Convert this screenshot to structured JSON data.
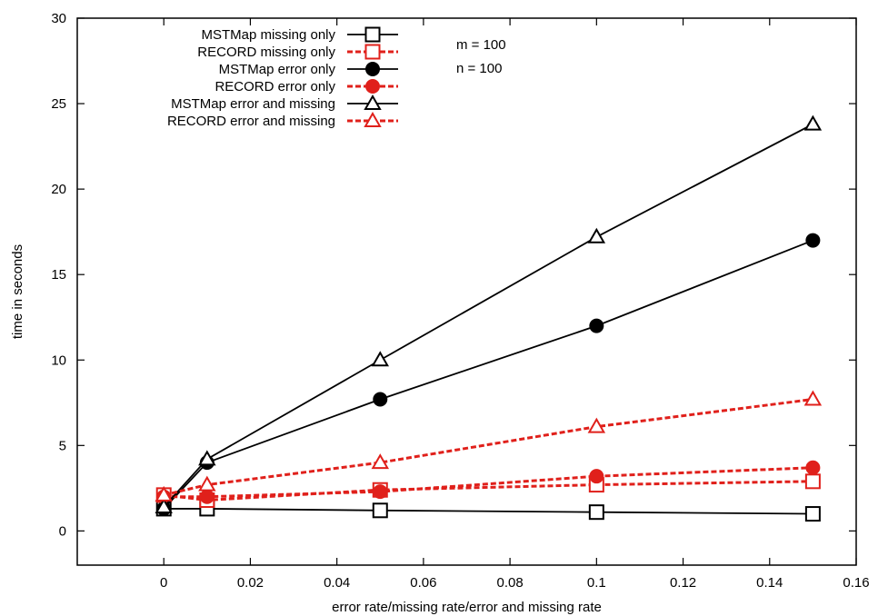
{
  "chart_data": {
    "type": "line",
    "title": "",
    "xlabel": "error rate/missing rate/error and missing rate",
    "ylabel": "time in seconds",
    "xlim": [
      -0.02,
      0.16
    ],
    "ylim": [
      -2,
      30
    ],
    "xticks": [
      0,
      0.02,
      0.04,
      0.06,
      0.08,
      0.1,
      0.12,
      0.14,
      0.16
    ],
    "xtick_labels": [
      "0",
      "0.02",
      "0.04",
      "0.06",
      "0.08",
      "0.1",
      "0.12",
      "0.14",
      "0.16"
    ],
    "yticks": [
      0,
      5,
      10,
      15,
      20,
      25,
      30
    ],
    "ytick_labels": [
      "0",
      "5",
      "10",
      "15",
      "20",
      "25",
      "30"
    ],
    "grid": false,
    "legend_position": "top-left",
    "annotations": [
      "m = 100",
      "n = 100"
    ],
    "series": [
      {
        "name": "MSTMap missing only",
        "color": "#000000",
        "dash": "solid",
        "marker": "open-square",
        "x": [
          0,
          0.01,
          0.05,
          0.1,
          0.15
        ],
        "y": [
          1.3,
          1.3,
          1.2,
          1.1,
          1.0
        ]
      },
      {
        "name": "RECORD missing only",
        "color": "#e0201b",
        "dash": "dashed",
        "marker": "open-square",
        "x": [
          0,
          0.01,
          0.05,
          0.1,
          0.15
        ],
        "y": [
          2.1,
          1.8,
          2.4,
          2.7,
          2.9
        ]
      },
      {
        "name": "MSTMap error only",
        "color": "#000000",
        "dash": "solid",
        "marker": "filled-circle",
        "x": [
          0,
          0.01,
          0.05,
          0.1,
          0.15
        ],
        "y": [
          1.3,
          4.0,
          7.7,
          12.0,
          17.0
        ]
      },
      {
        "name": "RECORD error only",
        "color": "#e0201b",
        "dash": "dashed",
        "marker": "filled-circle",
        "x": [
          0,
          0.01,
          0.05,
          0.1,
          0.15
        ],
        "y": [
          2.0,
          2.0,
          2.3,
          3.2,
          3.7
        ]
      },
      {
        "name": "MSTMap error and missing",
        "color": "#000000",
        "dash": "solid",
        "marker": "open-triangle",
        "x": [
          0,
          0.01,
          0.05,
          0.1,
          0.15
        ],
        "y": [
          1.4,
          4.2,
          10.0,
          17.2,
          23.8
        ]
      },
      {
        "name": "RECORD error and missing",
        "color": "#e0201b",
        "dash": "dashed",
        "marker": "open-triangle",
        "x": [
          0,
          0.01,
          0.05,
          0.1,
          0.15
        ],
        "y": [
          2.1,
          2.7,
          4.0,
          6.1,
          7.7
        ]
      }
    ]
  }
}
